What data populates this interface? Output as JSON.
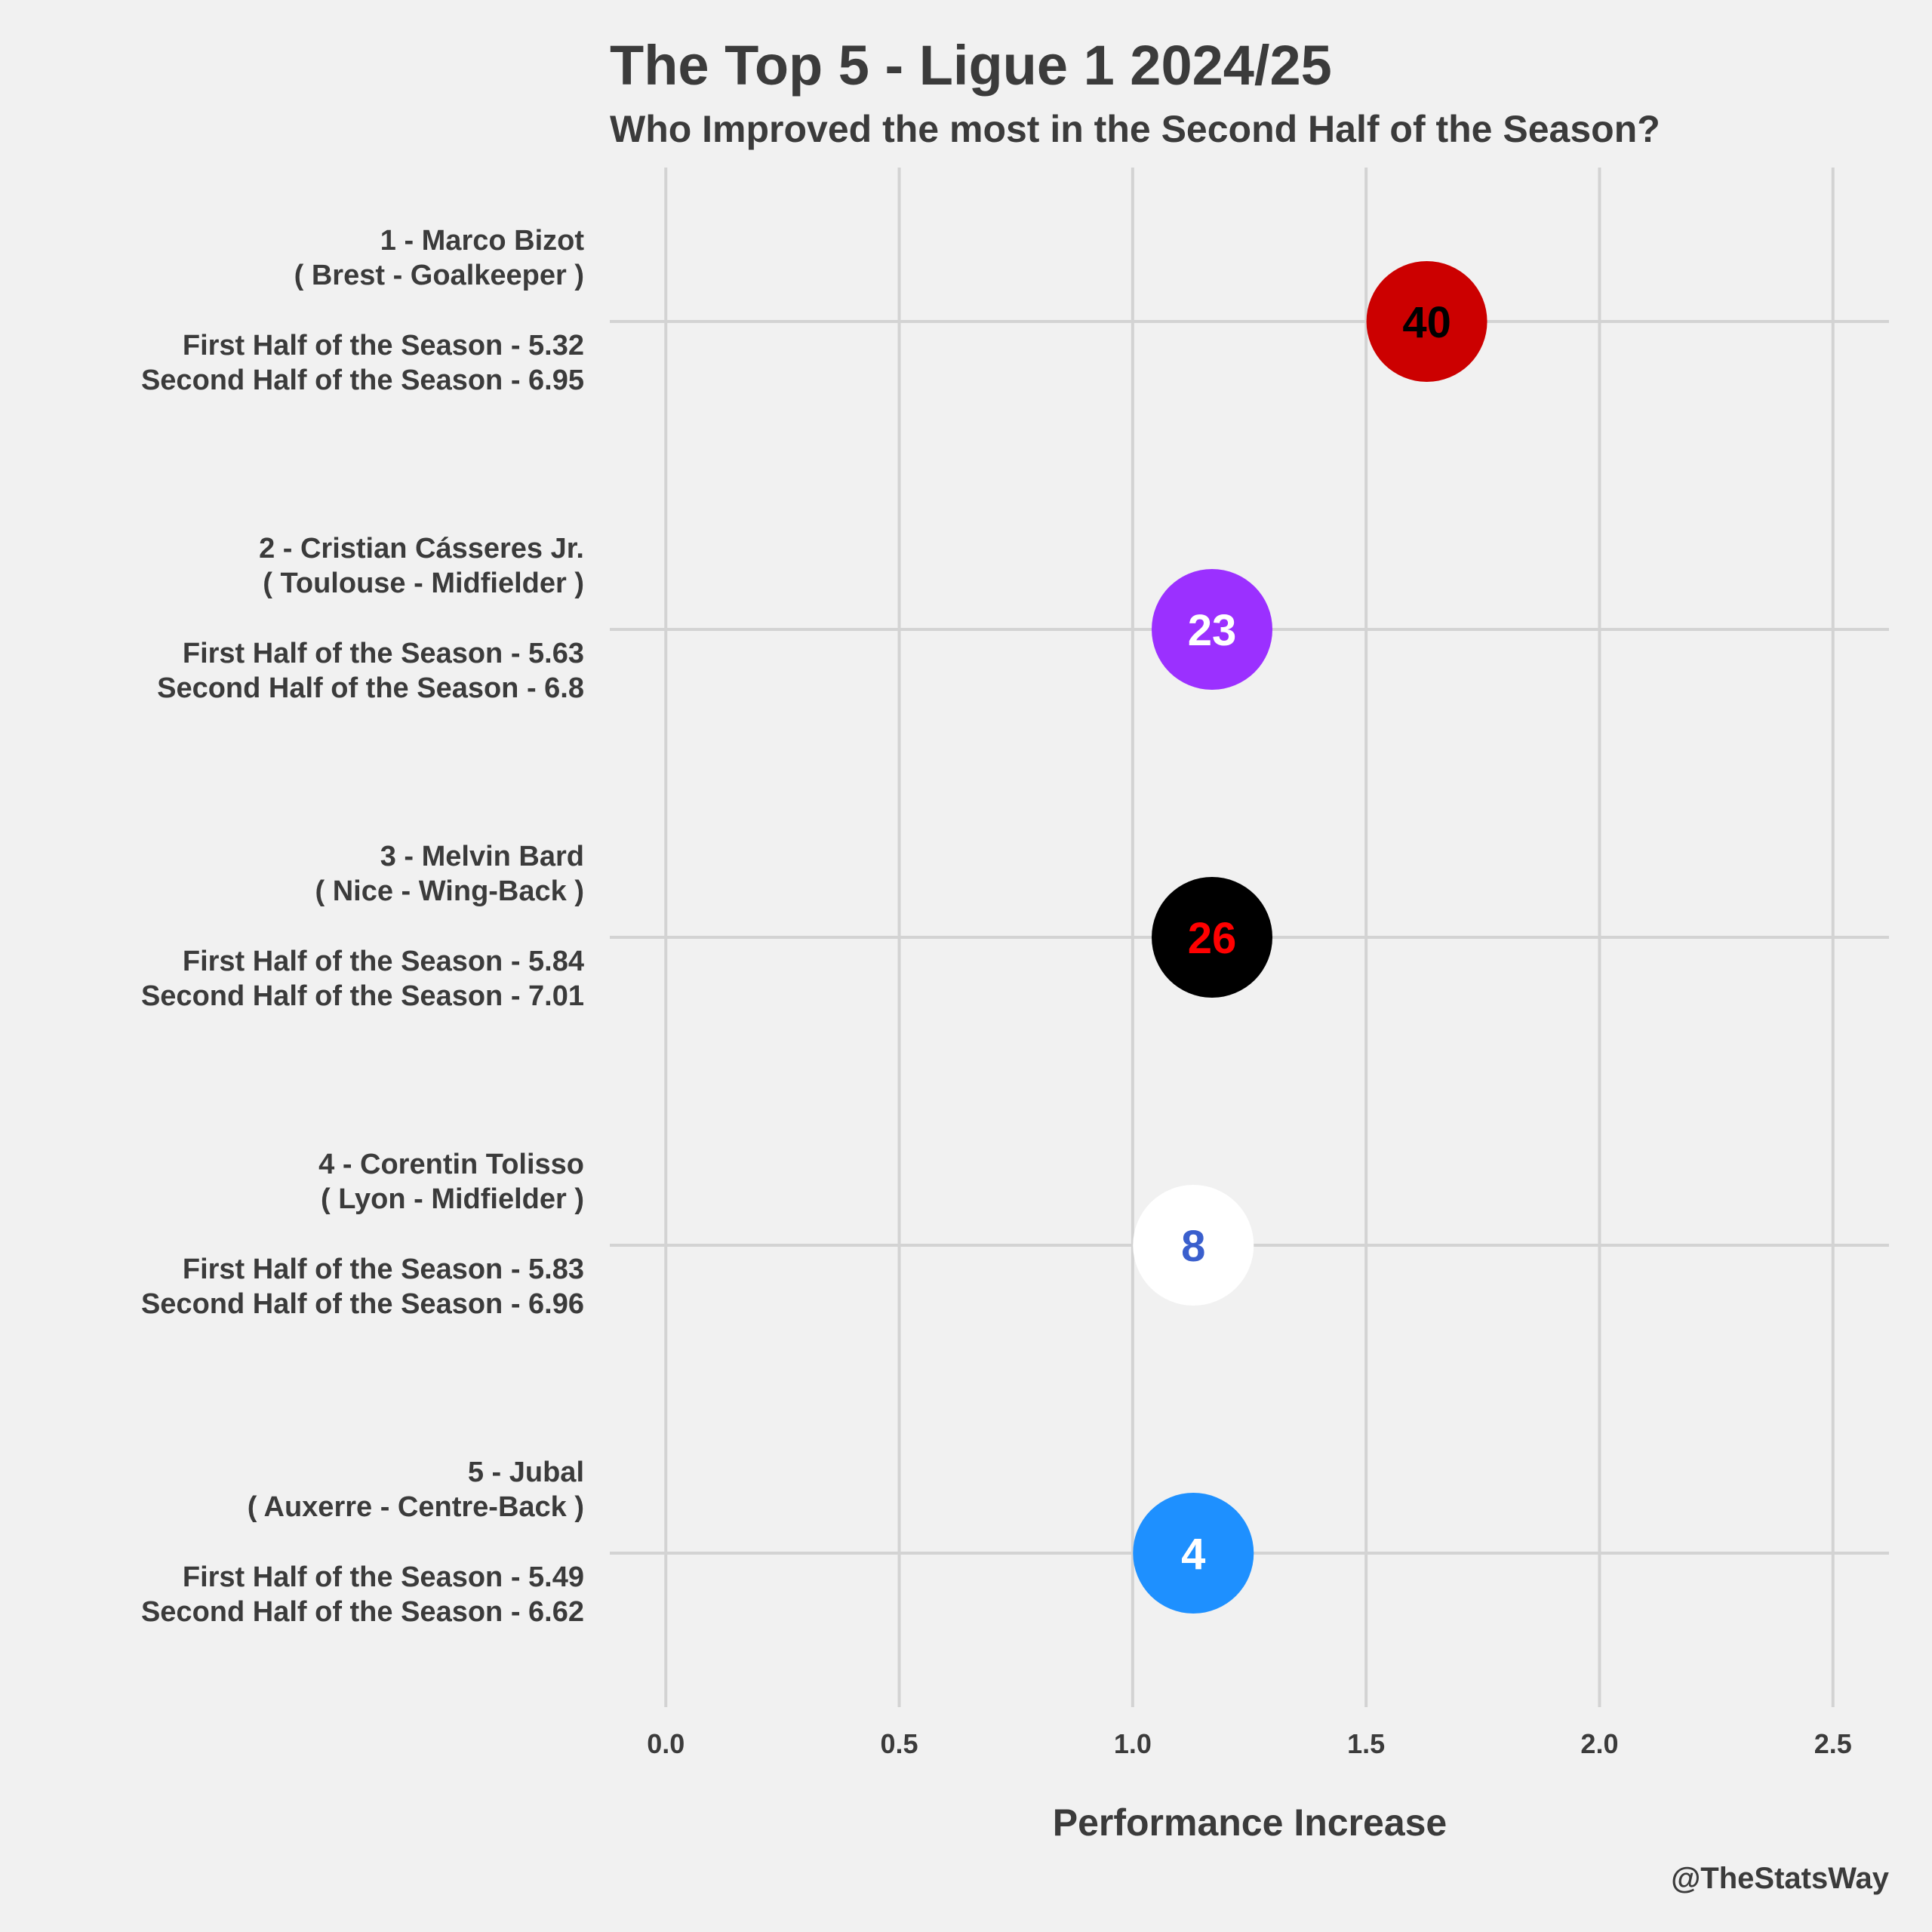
{
  "title": "The Top 5 - Ligue 1 2024/25",
  "subtitle": "Who Improved the most in the Second Half of the Season?",
  "caption": "@TheStatsWay",
  "chart_data": {
    "type": "scatter",
    "xlabel": "Performance Increase",
    "ylabel": "",
    "xlim": [
      -0.12,
      2.62
    ],
    "xticks": [
      "0.0",
      "0.5",
      "1.0",
      "1.5",
      "2.0",
      "2.5"
    ],
    "xtick_values": [
      0,
      0.5,
      1.0,
      1.5,
      2.0,
      2.5
    ],
    "grid": true,
    "points": [
      {
        "rank_name": "1 - Marco Bizot",
        "team_position": "( Brest - Goalkeeper )",
        "first_half": "First Half of the Season - 5.32",
        "second_half": "Second Half of the Season - 6.95",
        "x": 1.63,
        "shirt": "40",
        "fill": "#cc0000",
        "text_color": "#000000"
      },
      {
        "rank_name": "2 - Cristian Cásseres Jr.",
        "team_position": "( Toulouse - Midfielder )",
        "first_half": "First Half of the Season - 5.63",
        "second_half": "Second Half of the Season - 6.8",
        "x": 1.17,
        "shirt": "23",
        "fill": "#9b30ff",
        "text_color": "#ffffff"
      },
      {
        "rank_name": "3 - Melvin Bard",
        "team_position": "( Nice - Wing-Back )",
        "first_half": "First Half of the Season - 5.84",
        "second_half": "Second Half of the Season - 7.01",
        "x": 1.17,
        "shirt": "26",
        "fill": "#000000",
        "text_color": "#ff0000"
      },
      {
        "rank_name": "4 - Corentin Tolisso",
        "team_position": "( Lyon - Midfielder )",
        "first_half": "First Half of the Season - 5.83",
        "second_half": "Second Half of the Season - 6.96",
        "x": 1.13,
        "shirt": "8",
        "fill": "#ffffff",
        "text_color": "#3a5fcd"
      },
      {
        "rank_name": "5 - Jubal",
        "team_position": "( Auxerre - Centre-Back )",
        "first_half": "First Half of the Season - 5.49",
        "second_half": "Second Half of the Season - 6.62",
        "x": 1.13,
        "shirt": "4",
        "fill": "#1e90ff",
        "text_color": "#ffffff"
      }
    ]
  }
}
